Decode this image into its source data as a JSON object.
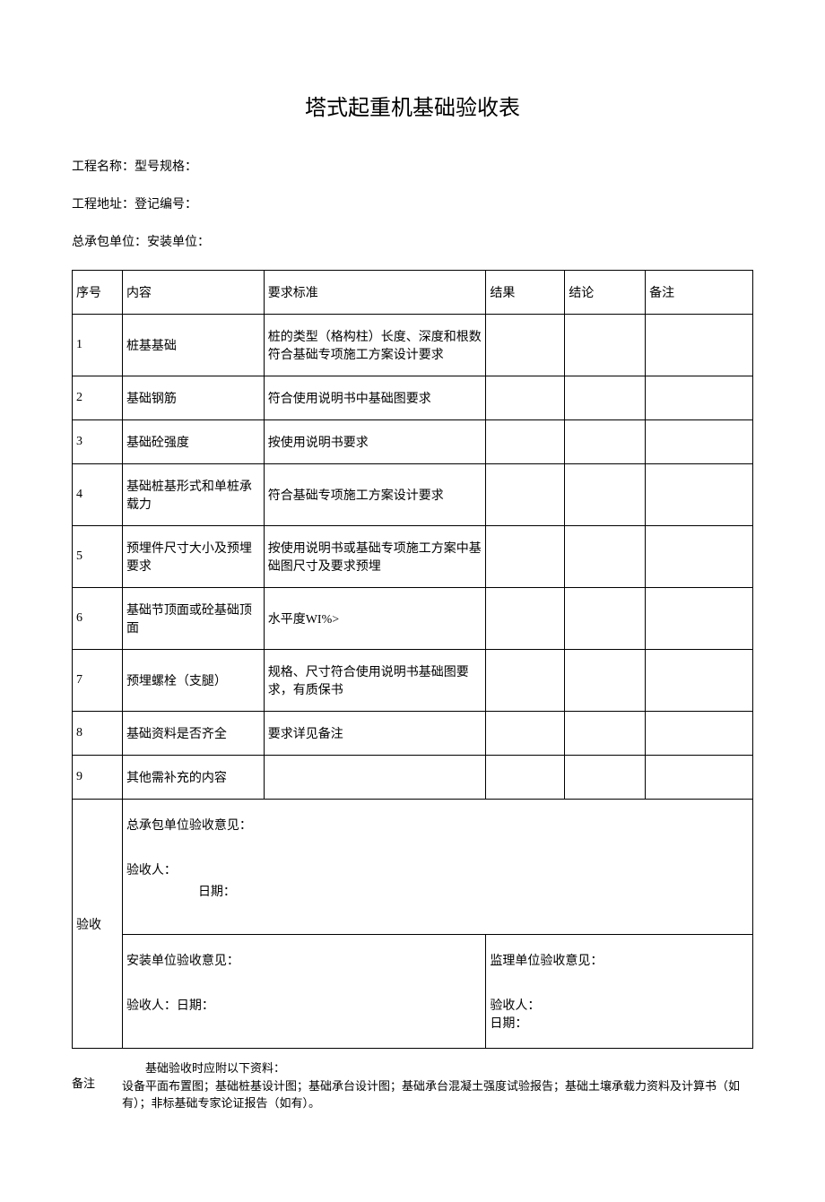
{
  "title": "塔式起重机基础验收表",
  "info": {
    "line1": "工程名称：型号规格：",
    "line2": "工程地址：登记编号：",
    "line3": "总承包单位：安装单位："
  },
  "headers": {
    "seq": "序号",
    "content": "内容",
    "standard": "要求标准",
    "result": "结果",
    "conclusion": "结论",
    "remark": "备注"
  },
  "rows": [
    {
      "seq": "1",
      "content": "桩基基础",
      "standard": "桩的类型（格构柱）长度、深度和根数符合基础专项施工方案设计要求",
      "result": "",
      "conclusion": "",
      "remark": ""
    },
    {
      "seq": "2",
      "content": "基础钢筋",
      "standard": "符合使用说明书中基础图要求",
      "result": "",
      "conclusion": "",
      "remark": ""
    },
    {
      "seq": "3",
      "content": "基础砼强度",
      "standard": "按使用说明书要求",
      "result": "",
      "conclusion": "",
      "remark": ""
    },
    {
      "seq": "4",
      "content": "基础桩基形式和单桩承载力",
      "standard": "符合基础专项施工方案设计要求",
      "result": "",
      "conclusion": "",
      "remark": ""
    },
    {
      "seq": "5",
      "content": "预埋件尺寸大小及预埋要求",
      "standard": "按使用说明书或基础专项施工方案中基础图尺寸及要求预埋",
      "result": "",
      "conclusion": "",
      "remark": ""
    },
    {
      "seq": "6",
      "content": "基础节顶面或砼基础顶面",
      "standard": "水平度WI%>",
      "result": "",
      "conclusion": "",
      "remark": ""
    },
    {
      "seq": "7",
      "content": "预埋螺栓（支腿）",
      "standard": "规格、尺寸符合使用说明书基础图要求，有质保书",
      "result": "",
      "conclusion": "",
      "remark": ""
    },
    {
      "seq": "8",
      "content": "基础资料是否齐全",
      "standard": "要求详见备注",
      "result": "",
      "conclusion": "",
      "remark": ""
    },
    {
      "seq": "9",
      "content": "其他需补充的内容",
      "standard": "",
      "result": "",
      "conclusion": "",
      "remark": ""
    }
  ],
  "acceptance": {
    "label": "验收",
    "contractor": {
      "opinion": "总承包单位验收意见：",
      "signer": "验收人：",
      "date": "日期："
    },
    "installer": {
      "opinion": "安装单位验收意见：",
      "signer": "验收人：日期："
    },
    "supervisor": {
      "opinion": "监理单位验收意见：",
      "signer": "验收人：",
      "date": "日期："
    }
  },
  "note": {
    "label": "备注",
    "line1": "基础验收时应附以下资料：",
    "line2": "设备平面布置图；基础桩基设计图；基础承台设计图；基础承台混凝土强度试验报告；基础土壤承载力资料及计算书（如有）；非标基础专家论证报告（如有）。"
  }
}
